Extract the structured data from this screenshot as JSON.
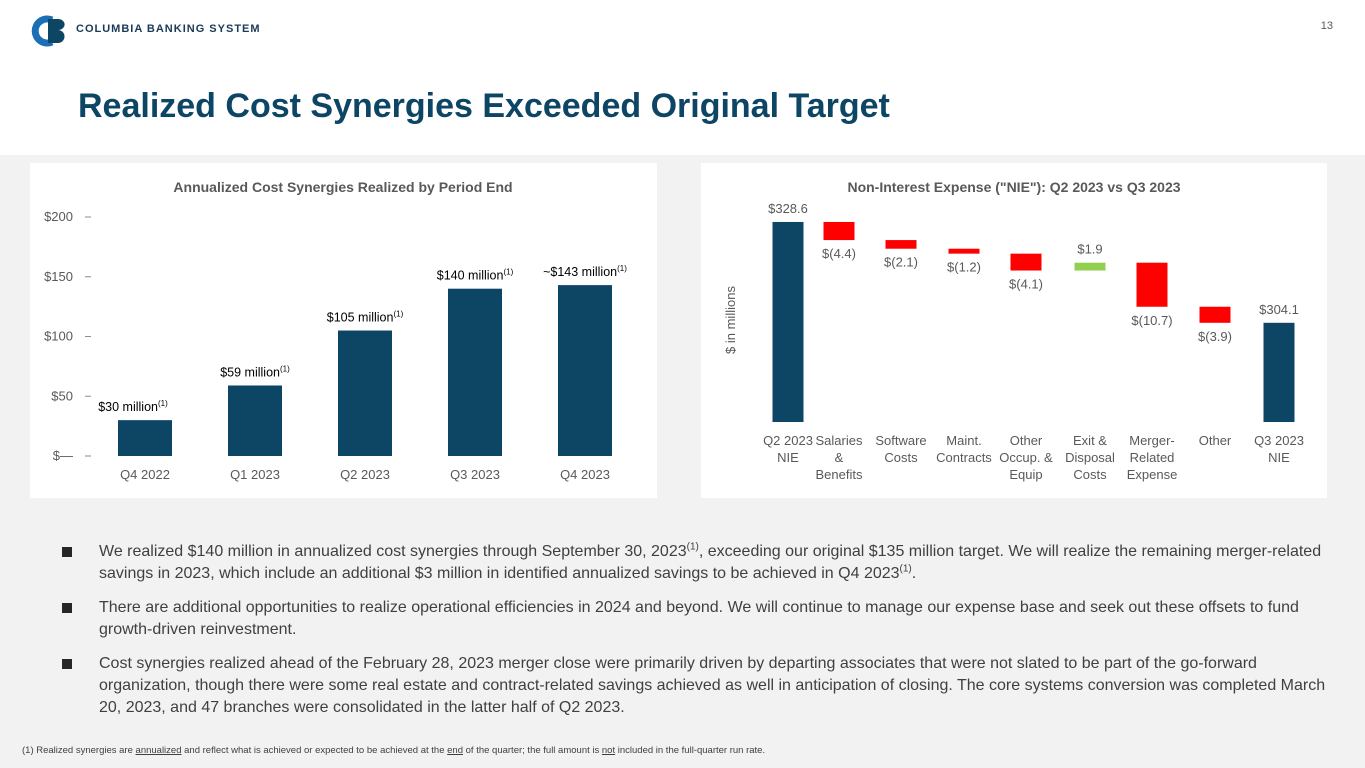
{
  "header": {
    "company": "COLUMBIA BANKING SYSTEM",
    "page_number": "13",
    "title": "Realized Cost Synergies Exceeded Original Target"
  },
  "chart_data": [
    {
      "type": "bar",
      "title": "Annualized Cost Synergies Realized by Period End",
      "categories": [
        "Q4 2022",
        "Q1 2023",
        "Q2 2023",
        "Q3 2023",
        "Q4 2023"
      ],
      "values": [
        30,
        59,
        105,
        140,
        143
      ],
      "value_labels": [
        "$30 million",
        "$59 million",
        "$105 million",
        "$140 million",
        "~$143 million"
      ],
      "value_label_notes": [
        "(1)",
        "(1)",
        "(1)",
        "(1)",
        "(1)"
      ],
      "color": "#0d4565",
      "ylim": [
        0,
        200
      ],
      "yticks": [
        {
          "value": 0,
          "label": "$—"
        },
        {
          "value": 50,
          "label": "$50"
        },
        {
          "value": 100,
          "label": "$100"
        },
        {
          "value": 150,
          "label": "$150"
        },
        {
          "value": 200,
          "label": "$200"
        }
      ]
    },
    {
      "type": "waterfall",
      "title": "Non-Interest Expense (\"NIE\"): Q2 2023 vs Q3 2023",
      "ylabel": "$ in millions",
      "categories": [
        "Q2 2023\nNIE",
        "Salaries\n&\nBenefits",
        "Software\nCosts",
        "Maint.\nContracts",
        "Other\nOccup. &\nEquip",
        "Exit &\nDisposal\nCosts",
        "Merger-\nRelated\nExpense",
        "Other",
        "Q3 2023\nNIE"
      ],
      "values": [
        328.6,
        -4.4,
        -2.1,
        -1.2,
        -4.1,
        1.9,
        -10.7,
        -3.9,
        304.1
      ],
      "value_labels": [
        "$328.6",
        "$(4.4)",
        "$(2.1)",
        "$(1.2)",
        "$(4.1)",
        "$1.9",
        "$(10.7)",
        "$(3.9)",
        "$304.1"
      ],
      "totals": [
        true,
        false,
        false,
        false,
        false,
        false,
        false,
        false,
        true
      ],
      "colors": {
        "total": "#0d4565",
        "decrease": "#ff0000",
        "increase": "#92d050"
      },
      "ylim": [
        280,
        330
      ]
    }
  ],
  "bullets": [
    [
      {
        "text": "We realized $140 million in annualized cost synergies through September 30, 2023"
      },
      {
        "sup": "(1)"
      },
      {
        "text": ", exceeding our original $135 million target.  We will realize the remaining merger-related savings in 2023, which include an additional $3 million in identified annualized savings to be achieved in Q4 2023"
      },
      {
        "sup": "(1)"
      },
      {
        "text": "."
      }
    ],
    [
      {
        "text": "There are additional opportunities to realize operational efficiencies in 2024 and beyond.  We will continue to manage our expense base and seek out these offsets to fund growth-driven reinvestment."
      }
    ],
    [
      {
        "text": "Cost synergies realized ahead of the February 28, 2023 merger close were primarily driven by departing associates that were not slated to be part of the go-forward organization, though there were some real estate and contract-related savings achieved as well in anticipation of closing. The core systems conversion was completed March 20, 2023, and 47 branches were consolidated in the latter half of Q2 2023."
      }
    ]
  ],
  "footnote": [
    {
      "text": "(1)  Realized synergies are "
    },
    {
      "u": "annualized"
    },
    {
      "text": " and reflect what is achieved or expected to be achieved at the "
    },
    {
      "u": "end"
    },
    {
      "text": " of the quarter; the full amount is "
    },
    {
      "u": "not"
    },
    {
      "text": " included in the full-quarter run rate."
    }
  ]
}
